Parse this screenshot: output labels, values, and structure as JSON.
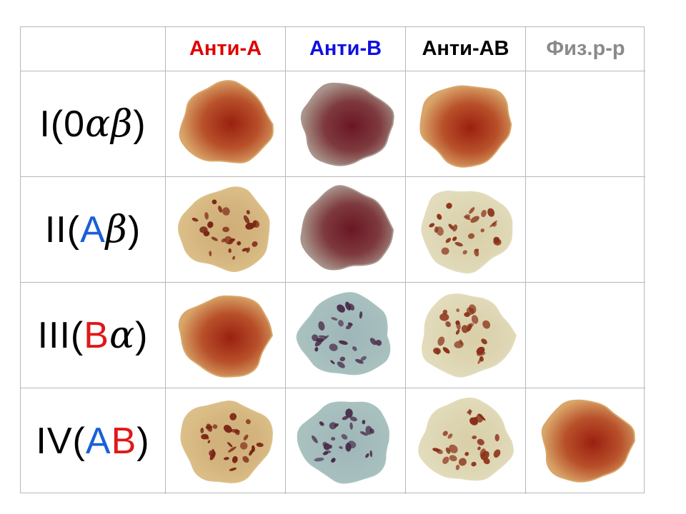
{
  "columns": [
    {
      "label": "Анти-А",
      "color": "#e00000"
    },
    {
      "label": "Анти-В",
      "color": "#1010e0"
    },
    {
      "label": "Анти-АВ",
      "color": "#000000"
    },
    {
      "label": "Физ.р-р",
      "color": "#8a8a8a"
    }
  ],
  "rows": [
    {
      "parts": [
        {
          "t": "I(0",
          "c": "#000000"
        },
        {
          "t": "α",
          "c": "#000000",
          "greek": true
        },
        {
          "t": "β",
          "c": "#000000",
          "greek": true
        },
        {
          "t": ")",
          "c": "#000000"
        }
      ],
      "cells": [
        "uniform-warm",
        "uniform-purple",
        "uniform-warm",
        "empty"
      ]
    },
    {
      "parts": [
        {
          "t": "II(",
          "c": "#000000"
        },
        {
          "t": "А",
          "c": "#1a5fd8"
        },
        {
          "t": "β",
          "c": "#000000",
          "greek": true
        },
        {
          "t": ")",
          "c": "#000000"
        }
      ],
      "cells": [
        "agglutinated-tan",
        "uniform-purple",
        "agglutinated-pale",
        "empty"
      ]
    },
    {
      "parts": [
        {
          "t": "III(",
          "c": "#000000"
        },
        {
          "t": "В",
          "c": "#e01818"
        },
        {
          "t": "α",
          "c": "#000000",
          "greek": true
        },
        {
          "t": ")",
          "c": "#000000"
        }
      ],
      "cells": [
        "uniform-warm",
        "agglutinated-blue",
        "agglutinated-pale",
        "empty"
      ]
    },
    {
      "parts": [
        {
          "t": "IV(",
          "c": "#000000"
        },
        {
          "t": "А",
          "c": "#1a5fd8"
        },
        {
          "t": "В",
          "c": "#e01818"
        },
        {
          "t": ")",
          "c": "#000000"
        }
      ],
      "cells": [
        "agglutinated-tan",
        "agglutinated-blue",
        "agglutinated-pale",
        "uniform-warm"
      ]
    }
  ],
  "styles": {
    "uniform-warm": {
      "outer": "#d9a66a",
      "mid": "#b8502a",
      "core": "#9a2010",
      "clumps": false
    },
    "uniform-purple": {
      "outer": "#a9958c",
      "mid": "#7e3a3e",
      "core": "#6a1624",
      "clumps": false
    },
    "agglutinated-tan": {
      "outer": "#dcbf88",
      "mid": "#d4b47e",
      "core": "#cfae78",
      "clumps": true,
      "clump": "#7a2414"
    },
    "agglutinated-pale": {
      "outer": "#e2dcbc",
      "mid": "#ddd5b2",
      "core": "#d8cfa8",
      "clumps": true,
      "clump": "#8a3018"
    },
    "agglutinated-blue": {
      "outer": "#a9c2c0",
      "mid": "#a4bcbc",
      "core": "#9fb6b8",
      "clumps": true,
      "clump": "#4a2a4a"
    }
  }
}
